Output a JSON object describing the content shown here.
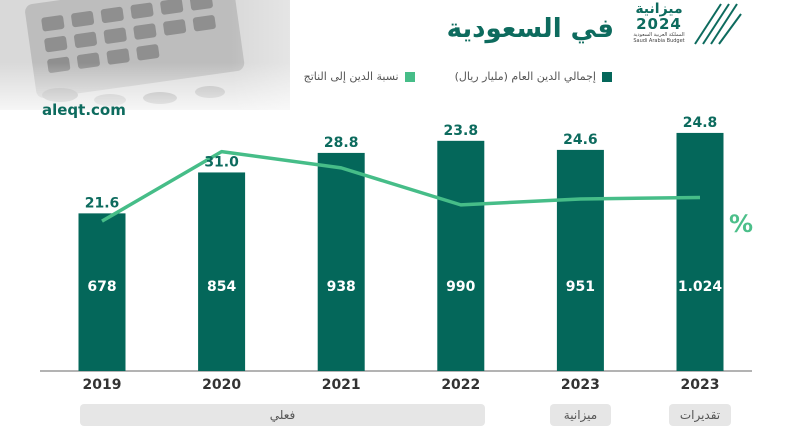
{
  "header": {
    "title": "في السعودية",
    "source": "aleqt.com",
    "logo": {
      "word": "ميزانية",
      "year": "2024",
      "sub_ar": "المملكة العربية السعودية",
      "sub_en": "Saudi Arabia Budget"
    }
  },
  "legend": {
    "debt_total": "إجمالي الدين العام (مليار ريال)",
    "debt_ratio": "نسبة الدين إلى الناتج"
  },
  "colors": {
    "bar": "#04675a",
    "line": "#46bd88",
    "label": "#0d6b5e",
    "pill": "#e6e6e6"
  },
  "percent_sign": "%",
  "chart_data": {
    "type": "bar",
    "categories": [
      "2019",
      "2020",
      "2021",
      "2022",
      "2023",
      "2023"
    ],
    "series": [
      {
        "name": "إجمالي الدين العام (مليار ريال)",
        "type": "bar",
        "values": [
          678,
          854,
          938,
          990,
          951,
          1024
        ],
        "value_labels": [
          "678",
          "854",
          "938",
          "990",
          "951",
          "1.024"
        ]
      },
      {
        "name": "نسبة الدين إلى الناتج",
        "type": "line",
        "values": [
          21.6,
          31.0,
          28.8,
          23.8,
          24.6,
          24.8
        ],
        "value_labels": [
          "21.6",
          "31.0",
          "28.8",
          "23.8",
          "24.6",
          "24.8"
        ]
      }
    ],
    "ylim": [
      0,
      1100
    ],
    "line_ylim": [
      0,
      40
    ],
    "groups": [
      {
        "label": "فعلي",
        "from": 0,
        "to": 3
      },
      {
        "label": "ميزانية",
        "from": 4,
        "to": 4
      },
      {
        "label": "تقديرات",
        "from": 5,
        "to": 5
      }
    ]
  }
}
